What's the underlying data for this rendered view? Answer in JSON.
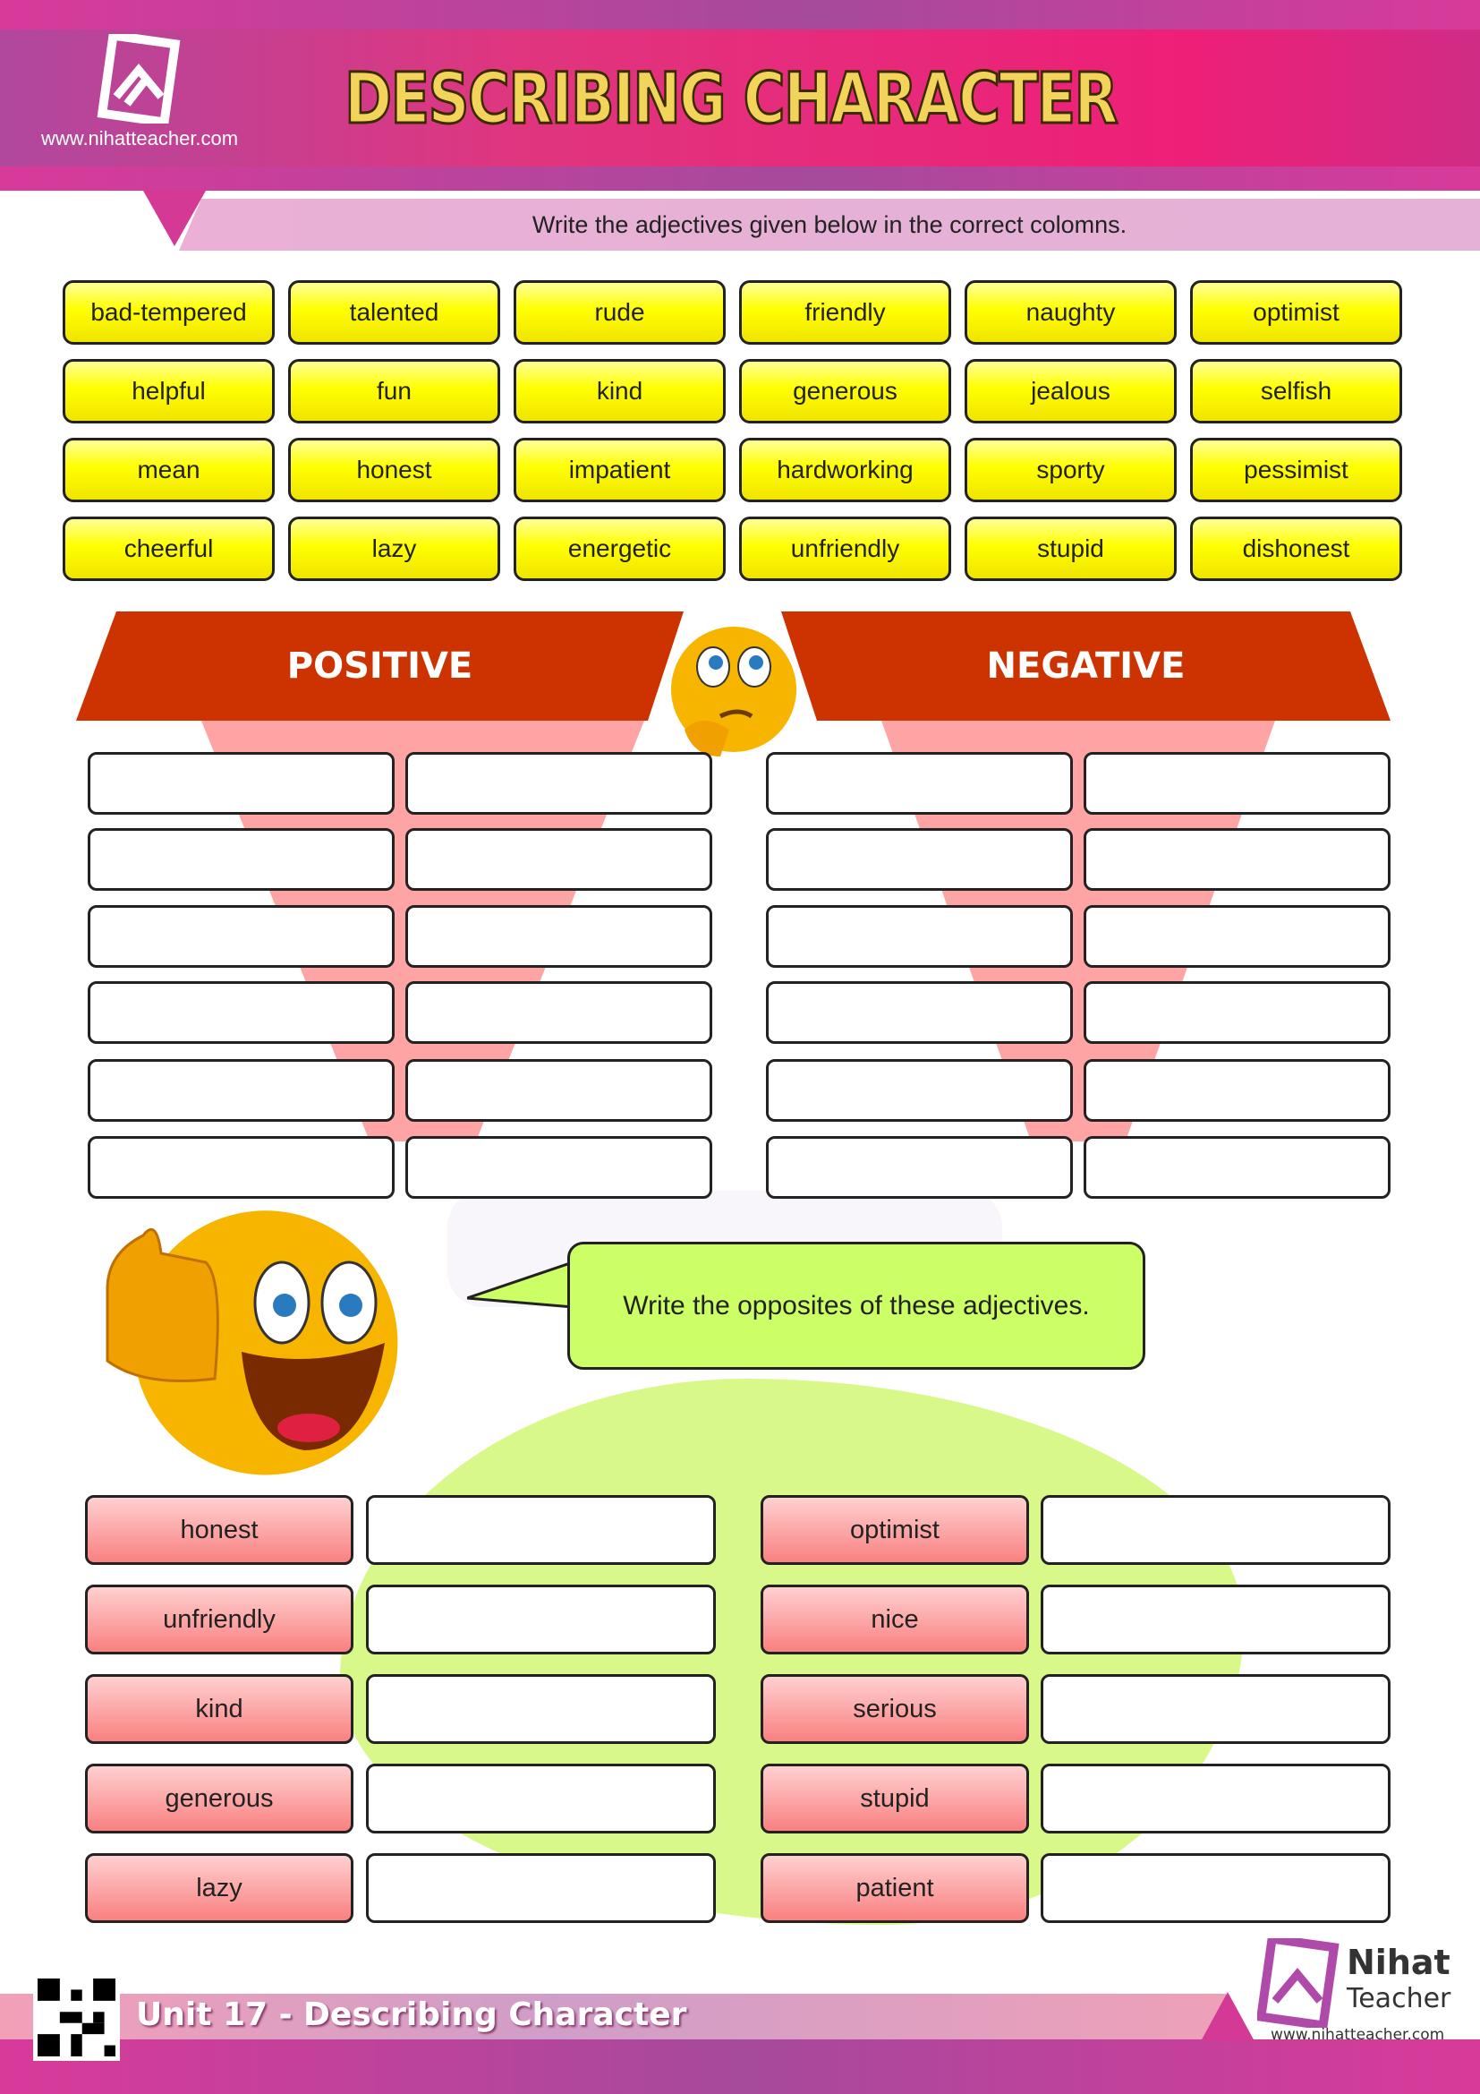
{
  "header": {
    "title": "DESCRIBING CHARACTER",
    "website": "www.nihatteacher.com",
    "instruction": "Write the adjectives given below in the correct colomns."
  },
  "word_bank": [
    [
      "bad-tempered",
      "talented",
      "rude",
      "friendly",
      "naughty",
      "optimist"
    ],
    [
      "helpful",
      "fun",
      "kind",
      "generous",
      "jealous",
      "selfish"
    ],
    [
      "mean",
      "honest",
      "impatient",
      "hardworking",
      "sporty",
      "pessimist"
    ],
    [
      "cheerful",
      "lazy",
      "energetic",
      "unfriendly",
      "stupid",
      "dishonest"
    ]
  ],
  "columns": {
    "positive": "POSITIVE",
    "negative": "NEGATIVE"
  },
  "opposites": {
    "instruction": "Write the opposites of these adjectives.",
    "left": [
      "honest",
      "unfriendly",
      "kind",
      "generous",
      "lazy"
    ],
    "right": [
      "optimist",
      "nice",
      "serious",
      "stupid",
      "patient"
    ]
  },
  "footer": {
    "unit": "Unit 17 - Describing Character",
    "brand_line1": "Nihat",
    "brand_line2": "Teacher",
    "website": "www.nihatteacher.com"
  },
  "colors": {
    "header": "#ee1f77",
    "word_box": "#ffff00",
    "column_header": "#cc3300",
    "label_box": "#f98080",
    "bubble": "#ccff66"
  }
}
